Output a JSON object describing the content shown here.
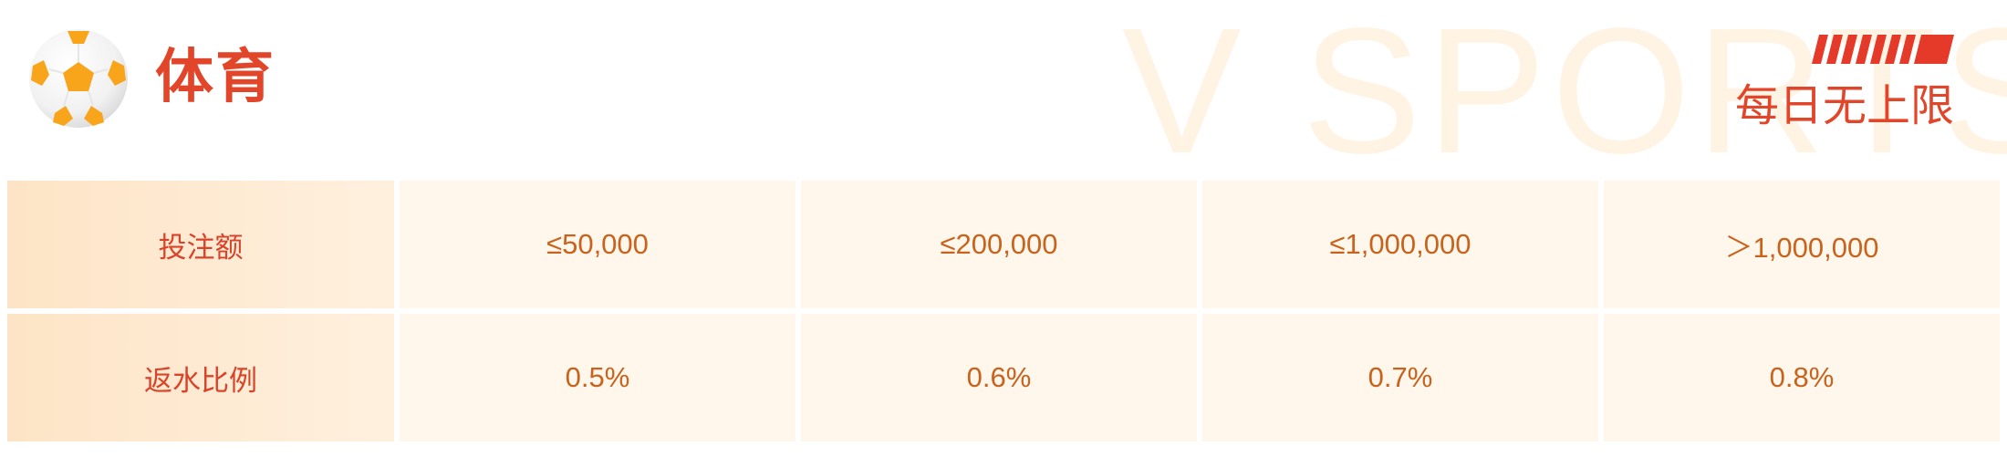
{
  "header": {
    "title": "体育",
    "watermark": "V SPORTS",
    "slogan": "每日无上限",
    "icon": "soccer-ball-icon"
  },
  "colors": {
    "accent": "#e2462a",
    "value_text": "#c8631d",
    "cell_bg": "#fff7ec",
    "header_cell_bg": "#fde4c6",
    "watermark": "#fff3e3"
  },
  "table": {
    "rows": [
      {
        "label": "投注额",
        "cells": [
          "≤50,000",
          "≤200,000",
          "≤1,000,000",
          "＞1,000,000"
        ]
      },
      {
        "label": "返水比例",
        "cells": [
          "0.5%",
          "0.6%",
          "0.7%",
          "0.8%"
        ]
      }
    ]
  }
}
